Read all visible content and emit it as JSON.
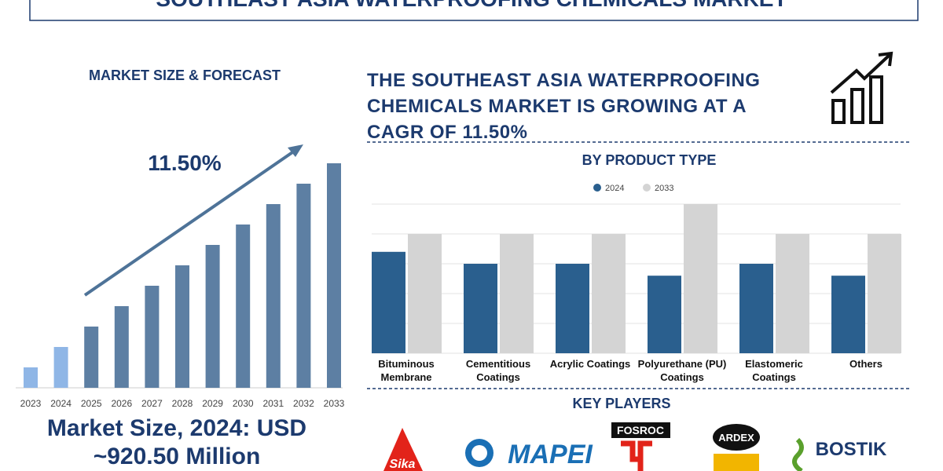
{
  "header": {
    "title": "SOUTHEAST ASIA WATERPROOFING CHEMICALS MARKET"
  },
  "headline": "THE SOUTHEAST ASIA WATERPROOFING CHEMICALS MARKET IS GROWING AT A CAGR OF 11.50%",
  "market_size_text": "Market Size, 2024: USD ~920.50 Million",
  "key_players_title": "KEY PLAYERS",
  "key_players": [
    "Sika",
    "MAPEI",
    "FOSROC",
    "ARDEX",
    "BOSTIK"
  ],
  "chart_data": [
    {
      "type": "bar",
      "title": "MARKET SIZE & FORECAST",
      "annotation": "11.50%",
      "categories": [
        "2023",
        "2024",
        "2025",
        "2026",
        "2027",
        "2028",
        "2029",
        "2030",
        "2031",
        "2032",
        "2033"
      ],
      "values": [
        1,
        2,
        3,
        4,
        5,
        6,
        7,
        8,
        9,
        10,
        11
      ],
      "colors": [
        "#8fb6e6",
        "#8fb6e6",
        "#5d7fa3",
        "#5d7fa3",
        "#5d7fa3",
        "#5d7fa3",
        "#5d7fa3",
        "#5d7fa3",
        "#5d7fa3",
        "#5d7fa3",
        "#5d7fa3"
      ],
      "ylim": [
        0,
        12
      ]
    },
    {
      "type": "bar",
      "title": "BY PRODUCT TYPE",
      "categories": [
        "Bituminous Membrane",
        "Cementitious Coatings",
        "Acrylic Coatings",
        "Polyurethane (PU) Coatings",
        "Elastomeric Coatings",
        "Others"
      ],
      "series": [
        {
          "name": "2024",
          "color": "#2a5f8e",
          "values": [
            3.4,
            3,
            3,
            2.6,
            3,
            2.6
          ]
        },
        {
          "name": "2033",
          "color": "#d4d4d4",
          "values": [
            4,
            4,
            4,
            5,
            4,
            4
          ]
        }
      ],
      "ylim": [
        0,
        5
      ],
      "yticks": [
        0,
        1,
        2,
        3,
        4,
        5
      ],
      "grid": true
    }
  ]
}
